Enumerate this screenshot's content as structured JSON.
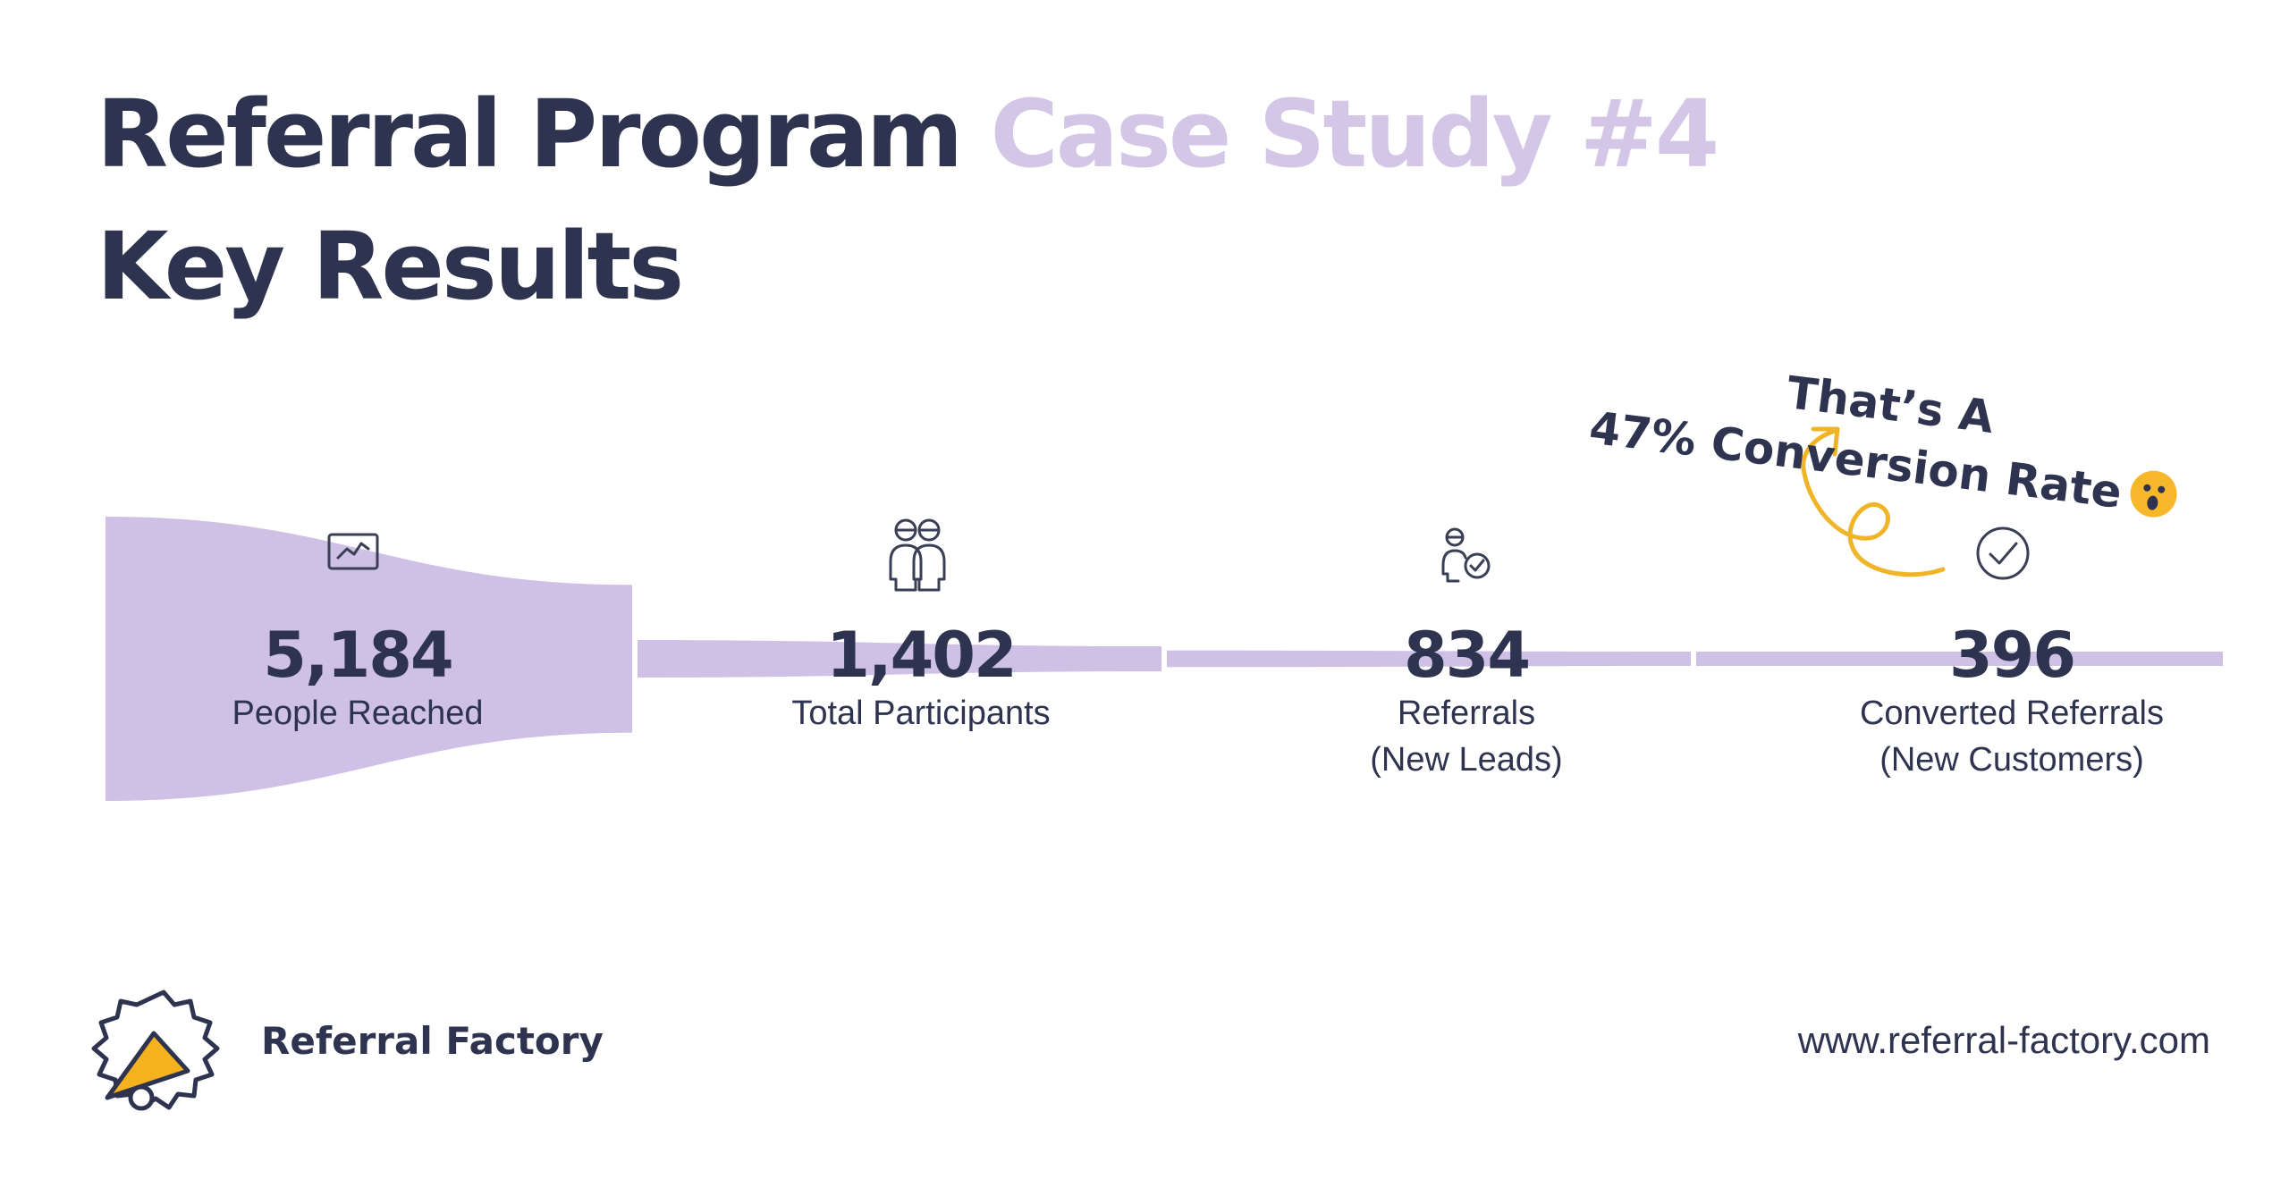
{
  "title": {
    "line1_main": "Referral Program",
    "line1_accent": "Case Study #4",
    "line2": "Key Results"
  },
  "colors": {
    "text": "#2e3450",
    "accent": "#d3c6e6",
    "funnel": "#cfc1e6",
    "arrow": "#f0b429",
    "icon": "#3a3f56"
  },
  "chart_data": {
    "type": "funnel",
    "stages": [
      {
        "value": 5184,
        "value_label": "5,184",
        "label_lines": [
          "People Reached"
        ],
        "icon": "line-chart-icon"
      },
      {
        "value": 1402,
        "value_label": "1,402",
        "label_lines": [
          "Total Participants"
        ],
        "icon": "two-people-icon"
      },
      {
        "value": 834,
        "value_label": "834",
        "label_lines": [
          "Referrals",
          "(New Leads)"
        ],
        "icon": "person-check-icon"
      },
      {
        "value": 396,
        "value_label": "396",
        "label_lines": [
          "Converted Referrals",
          "(New Customers)"
        ],
        "icon": "check-circle-icon"
      }
    ]
  },
  "annotation": {
    "line1": "That’s A",
    "line2": "47% Conversion Rate",
    "emoji": "surprised-face-emoji",
    "arrow_icon": "curly-arrow-icon"
  },
  "footer": {
    "brand_name": "Referral Factory",
    "logo_icon": "megaphone-badge-icon",
    "website": "www.referral-factory.com"
  }
}
